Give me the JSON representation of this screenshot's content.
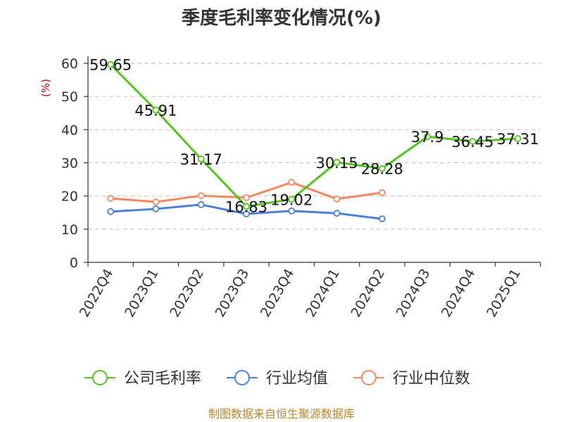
{
  "chart_data": {
    "type": "line",
    "title": "季度毛利率变化情况(%)",
    "ylabel": "(%)",
    "xlabel": "",
    "categories": [
      "2022Q4",
      "2023Q1",
      "2023Q2",
      "2023Q3",
      "2023Q4",
      "2024Q1",
      "2024Q2",
      "2024Q3",
      "2024Q4",
      "2025Q1"
    ],
    "ylim": [
      0,
      60
    ],
    "yticks": [
      0,
      10,
      20,
      30,
      40,
      50,
      60
    ],
    "grid": true,
    "legend_position": "bottom",
    "series": [
      {
        "name": "公司毛利率",
        "color": "#52c41a",
        "values": [
          59.65,
          45.91,
          31.17,
          16.83,
          19.02,
          30.15,
          28.28,
          37.9,
          36.45,
          37.31
        ],
        "labels": [
          "59.65",
          "45.91",
          "31.17",
          "16.83",
          "19.02",
          "30.15",
          "28.28",
          "37.9",
          "36.45",
          "37.31"
        ]
      },
      {
        "name": "行业均值",
        "color": "#4a7fdb",
        "values": [
          15.3,
          16.1,
          17.4,
          14.6,
          15.5,
          14.8,
          13.1,
          null,
          null,
          null
        ]
      },
      {
        "name": "行业中位数",
        "color": "#f4895f",
        "values": [
          19.3,
          18.2,
          20.1,
          19.5,
          24.1,
          19.1,
          21.0,
          null,
          null,
          null
        ]
      }
    ],
    "source": "制图数据来自恒生聚源数据库"
  }
}
